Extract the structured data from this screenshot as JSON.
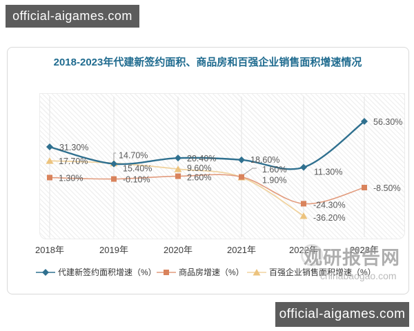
{
  "watermarks": {
    "top_left": "official-aigames.com",
    "bottom_right": "official-aigames.com",
    "site_name": "观研报告网",
    "site_url": "chinabaogao.com"
  },
  "chart_data": {
    "type": "line",
    "title": "2018-2023年代建新签约面积、商品房和百强企业销售面积增速情况",
    "categories": [
      "2018年",
      "2019年",
      "2020年",
      "2021年",
      "2022年",
      "2023年"
    ],
    "series": [
      {
        "name": "代建新签约面积增速（%）",
        "marker": "diamond",
        "color": "#2f708f",
        "values": [
          31.3,
          14.7,
          20.4,
          18.6,
          11.3,
          56.3
        ],
        "labels": [
          "31.30%",
          "14.70%",
          "20.40%",
          "18.60%",
          "11.30%",
          "56.30%"
        ]
      },
      {
        "name": "商品房增速（%）",
        "marker": "square",
        "color": "#d9835c",
        "values": [
          1.3,
          -0.1,
          2.6,
          1.9,
          -24.3,
          -8.5
        ],
        "labels": [
          "1.30%",
          "-0.10%",
          "2.60%",
          "1.90%",
          "-24.30%",
          "-8.50%"
        ]
      },
      {
        "name": "百强企业销售面积增速（%）",
        "marker": "triangle",
        "color": "#ecc37e",
        "values": [
          17.7,
          15.4,
          9.6,
          1.6,
          -36.2,
          null
        ],
        "labels": [
          "17.70%",
          "15.40%",
          "9.60%",
          "1.60%",
          "-36.20%",
          null
        ]
      }
    ],
    "ylim": [
      -44,
      62
    ],
    "grid": "vertical-faint",
    "legend_position": "bottom",
    "label_color": "#595959"
  }
}
